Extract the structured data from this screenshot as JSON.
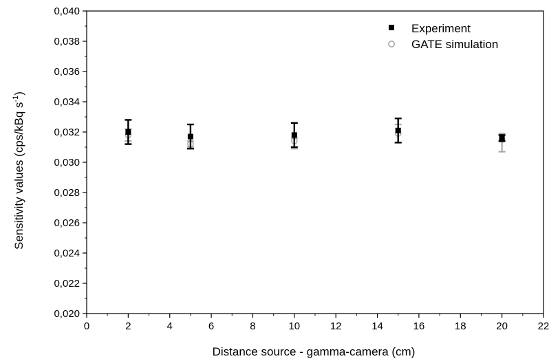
{
  "chart_data": {
    "type": "scatter",
    "title": "",
    "xlabel": "Distance source - gamma-camera (cm)",
    "ylabel": {
      "main": "Sensitivity values (cps/kBq s",
      "superscript": "-1",
      "close": ")"
    },
    "xlim": [
      0,
      22
    ],
    "ylim": [
      0.02,
      0.04
    ],
    "x_ticks": [
      0,
      2,
      4,
      6,
      8,
      10,
      12,
      14,
      16,
      18,
      20,
      22
    ],
    "x_tick_labels": [
      "0",
      "2",
      "4",
      "6",
      "8",
      "10",
      "12",
      "14",
      "16",
      "18",
      "20",
      "22"
    ],
    "y_ticks": [
      0.02,
      0.022,
      0.024,
      0.026,
      0.028,
      0.03,
      0.032,
      0.034,
      0.036,
      0.038,
      0.04
    ],
    "y_tick_labels": [
      "0,020",
      "0,022",
      "0,024",
      "0,026",
      "0,028",
      "0,030",
      "0,032",
      "0,034",
      "0,036",
      "0,038",
      "0,040"
    ],
    "grid": false,
    "legend": "top-right",
    "series": [
      {
        "name": "Experiment",
        "marker": "filled-square",
        "color": "#000000",
        "x": [
          2,
          5,
          10,
          15,
          20
        ],
        "y": [
          0.032,
          0.0317,
          0.0318,
          0.0321,
          0.0316
        ],
        "err_upper": [
          0.0328,
          0.0325,
          0.0326,
          0.0329,
          0.0318
        ],
        "err_lower": [
          0.0312,
          0.0309,
          0.031,
          0.0313,
          0.0314
        ]
      },
      {
        "name": "GATE simulation",
        "marker": "open-circle",
        "color": "#a9a9a9",
        "x": [
          2,
          5,
          10,
          15,
          20
        ],
        "y": [
          0.0318,
          0.0312,
          0.0314,
          0.0319,
          0.0315
        ],
        "err_upper": [
          0.0322,
          0.0314,
          0.0316,
          0.0325,
          0.0319
        ],
        "err_lower": [
          0.0314,
          0.031,
          0.0309,
          0.0313,
          0.0307
        ]
      }
    ]
  }
}
